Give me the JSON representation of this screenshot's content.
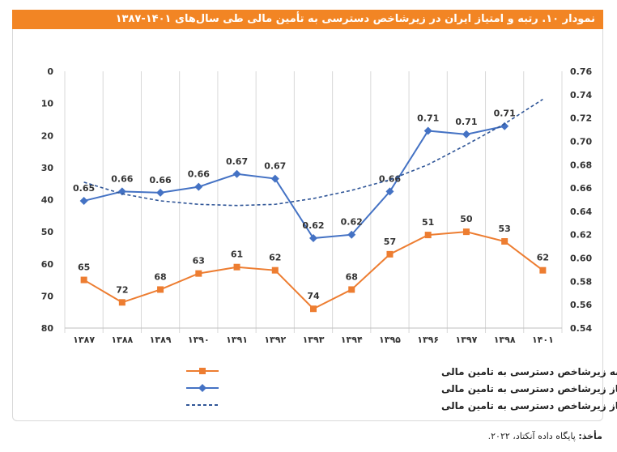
{
  "title": "نمودار ۱۰. رتبه و امتیاز ایران در زیرشاخص دسترسی به تأمین مالی طی سال‌های ۱۴۰۱-۱۳۸۷",
  "source_label": "مأخذ:",
  "source_text": " پایگاه داده آنکتاد، ۲۰۲۲.",
  "chart_data": {
    "type": "line",
    "categories": [
      "۱۳۸۷",
      "۱۳۸۸",
      "۱۳۸۹",
      "۱۳۹۰",
      "۱۳۹۱",
      "۱۳۹۲",
      "۱۳۹۳",
      "۱۳۹۴",
      "۱۳۹۵",
      "۱۳۹۶",
      "۱۳۹۷",
      "۱۳۹۸",
      "۱۴۰۱"
    ],
    "left_axis": {
      "range": [
        0,
        80
      ],
      "inverted": true,
      "ticks": [
        0,
        10,
        20,
        30,
        40,
        50,
        60,
        70,
        80
      ]
    },
    "right_axis": {
      "range": [
        0.54,
        0.76
      ],
      "ticks": [
        "0.54",
        "0.56",
        "0.58",
        "0.60",
        "0.62",
        "0.64",
        "0.66",
        "0.68",
        "0.70",
        "0.72",
        "0.74",
        "0.76"
      ]
    },
    "grid": "vertical",
    "legend_placement": "bottom",
    "series": [
      {
        "name": "رتبه زیرشاخص دسترسی به تامین مالی",
        "axis": "left",
        "color": "#ED7D31",
        "marker": "square",
        "values": [
          65,
          72,
          68,
          63,
          61,
          62,
          74,
          68,
          57,
          51,
          50,
          53,
          62
        ],
        "labels": [
          "65",
          "72",
          "68",
          "63",
          "61",
          "62",
          "74",
          "68",
          "57",
          "51",
          "50",
          "53",
          "62"
        ]
      },
      {
        "name": "امتیاز زیرشاخص دسترسی به تامین مالی",
        "axis": "right",
        "color": "#4472C4",
        "marker": "diamond",
        "values": [
          0.649,
          0.657,
          0.656,
          0.661,
          0.672,
          0.668,
          0.617,
          0.62,
          0.657,
          0.709,
          0.706,
          0.713,
          null
        ],
        "labels": [
          "0.65",
          "0.66",
          "0.66",
          "0.66",
          "0.67",
          "0.67",
          "0.62",
          "0.62",
          "0.66",
          "0.71",
          "0.71",
          "0.71",
          ""
        ]
      },
      {
        "name": "برازش امتیاز زیرشاخص دسترسی به تامین مالی",
        "axis": "right",
        "color": "#2F5597",
        "style": "dashed",
        "values": [
          0.665,
          0.655,
          0.649,
          0.646,
          0.645,
          0.646,
          0.651,
          0.658,
          0.667,
          0.68,
          0.697,
          0.715,
          0.736
        ]
      }
    ]
  }
}
